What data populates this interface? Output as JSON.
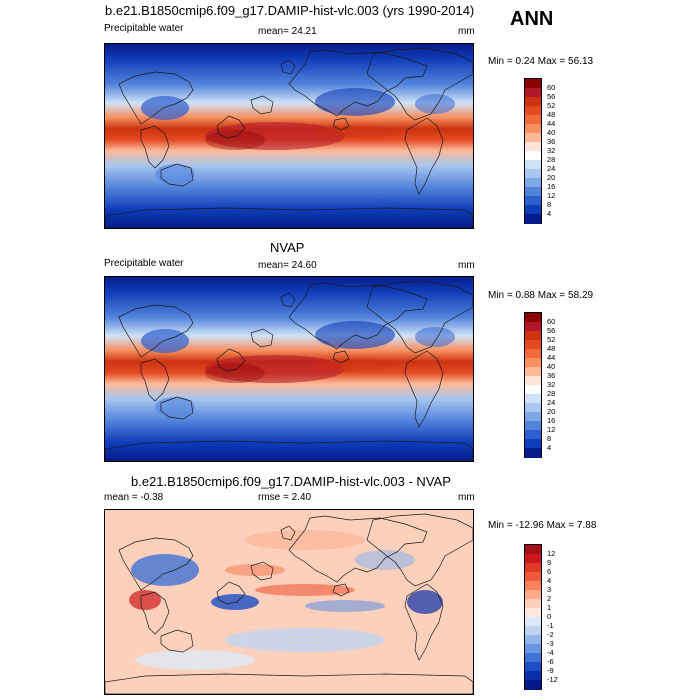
{
  "header": {
    "main_title": "b.e21.B1850cmip6.f09_g17.DAMIP-hist-vlc.003 (yrs 1990-2014)",
    "season": "ANN"
  },
  "panels": [
    {
      "id": "model",
      "title": "",
      "left_label": "Precipitable water",
      "center_label": "mean=  24.21",
      "right_label": "mm",
      "stats": "Min =   0.24 Max =  56.13",
      "colorbar": {
        "labels": [
          "60",
          "56",
          "52",
          "48",
          "44",
          "40",
          "36",
          "32",
          "28",
          "24",
          "20",
          "16",
          "12",
          "8",
          "4"
        ],
        "colors": [
          "#8b0000",
          "#b2182b",
          "#cc3311",
          "#e34a22",
          "#f06a3c",
          "#f78f5e",
          "#fcb998",
          "#fde4d6",
          "#ffffff",
          "#cfe2f7",
          "#a8c6ef",
          "#7ea7e6",
          "#5384dc",
          "#2c5fd0",
          "#0f3cb8",
          "#061c8c"
        ]
      }
    },
    {
      "id": "obs",
      "title": "NVAP",
      "left_label": "Precipitable water",
      "center_label": "mean=  24.60",
      "right_label": "mm",
      "stats": "Min =   0.88 Max =  58.29",
      "colorbar": {
        "labels": [
          "60",
          "56",
          "52",
          "48",
          "44",
          "40",
          "36",
          "32",
          "28",
          "24",
          "20",
          "16",
          "12",
          "8",
          "4"
        ],
        "colors": [
          "#8b0000",
          "#b2182b",
          "#cc3311",
          "#e34a22",
          "#f06a3c",
          "#f78f5e",
          "#fcb998",
          "#fde4d6",
          "#ffffff",
          "#cfe2f7",
          "#a8c6ef",
          "#7ea7e6",
          "#5384dc",
          "#2c5fd0",
          "#0f3cb8",
          "#061c8c"
        ]
      }
    },
    {
      "id": "diff",
      "title": "b.e21.B1850cmip6.f09_g17.DAMIP-hist-vlc.003 - NVAP",
      "left_label": "mean =  -0.38",
      "center_label": "rmse =   2.40",
      "right_label": "mm",
      "stats": "Min = -12.96 Max =   7.88",
      "colorbar": {
        "labels": [
          "12",
          "9",
          "6",
          "4",
          "3",
          "2",
          "1",
          "0",
          "-1",
          "-2",
          "-3",
          "-4",
          "-6",
          "-9",
          "-12"
        ],
        "colors": [
          "#a50f15",
          "#cb181d",
          "#e03a24",
          "#ef5a3a",
          "#f7825e",
          "#fcaa8b",
          "#fdd0bb",
          "#fde9df",
          "#dde9f8",
          "#c0d4f2",
          "#93b6ea",
          "#6a95e0",
          "#3f72d6",
          "#1c4ec6",
          "#0a2ea8",
          "#041884"
        ]
      }
    }
  ]
}
